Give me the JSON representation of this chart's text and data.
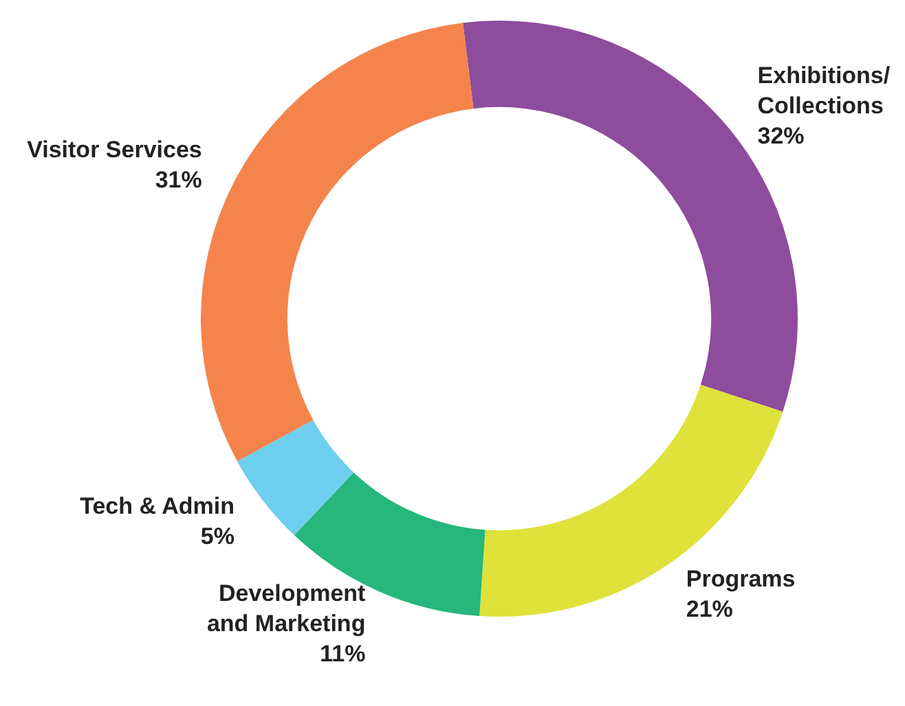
{
  "chart_data": {
    "type": "donut",
    "categories": [
      "Exhibitions/\nCollections",
      "Programs",
      "Development\nand Marketing",
      "Tech & Admin",
      "Visitor Services"
    ],
    "values": [
      32,
      21,
      11,
      5,
      31
    ],
    "value_labels": [
      "32%",
      "21%",
      "11%",
      "5%",
      "31%"
    ],
    "colors": [
      "#8e4c9d",
      "#dfe23a",
      "#25b77b",
      "#6ecfee",
      "#f4844c"
    ],
    "legend": false
  }
}
